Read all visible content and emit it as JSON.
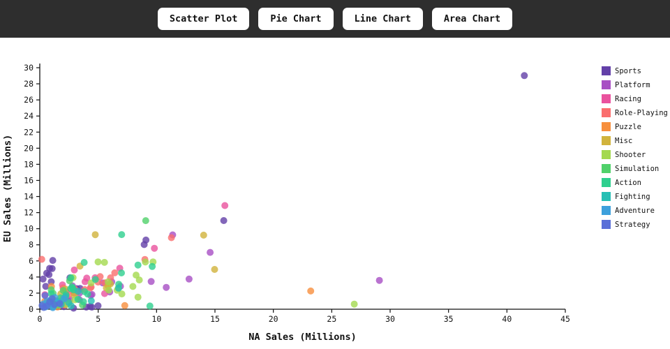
{
  "toolbar": {
    "buttons": [
      {
        "label": "Scatter Plot"
      },
      {
        "label": "Pie Chart"
      },
      {
        "label": "Line Chart"
      },
      {
        "label": "Area Chart"
      }
    ]
  },
  "colors": {
    "topbar_bg": "#2e2e2e",
    "button_bg": "#ffffff",
    "axis": "#111111"
  },
  "chart_data": {
    "type": "scatter",
    "title": "",
    "xlabel": "NA Sales (Millions)",
    "ylabel": "EU Sales (Millions)",
    "xlim": [
      0,
      45
    ],
    "ylim": [
      0,
      30
    ],
    "xticks": [
      0,
      5,
      10,
      15,
      20,
      25,
      30,
      35,
      40,
      45
    ],
    "yticks": [
      0,
      2,
      4,
      6,
      8,
      10,
      12,
      14,
      16,
      18,
      20,
      22,
      24,
      26,
      28,
      30
    ],
    "grid": false,
    "legend_position": "right",
    "marker": {
      "radius": 5,
      "opacity": 0.8
    },
    "series": [
      {
        "name": "Sports",
        "color": "#6340a8",
        "points": [
          [
            41.49,
            29.02
          ],
          [
            15.75,
            11.01
          ],
          [
            9.09,
            8.59
          ],
          [
            8.94,
            8.03
          ],
          [
            2.58,
            3.9
          ],
          [
            1.11,
            6.06
          ],
          [
            0.79,
            4.29
          ],
          [
            1.06,
            5.05
          ],
          [
            0.84,
            5.07
          ],
          [
            0.59,
            4.47
          ],
          [
            0.28,
            3.75
          ],
          [
            4.46,
            0.26
          ],
          [
            4.99,
            0.43
          ],
          [
            4.31,
            0.34
          ],
          [
            3.98,
            0.26
          ],
          [
            2.89,
            0.13
          ],
          [
            3.45,
            2.58
          ],
          [
            3.17,
            2.56
          ],
          [
            1.26,
            0.58
          ],
          [
            2.42,
            1.04
          ],
          [
            0.98,
            3.42
          ],
          [
            1.76,
            0.72
          ],
          [
            2.06,
            0.31
          ],
          [
            0.51,
            2.84
          ]
        ]
      },
      {
        "name": "Platform",
        "color": "#a84fc4",
        "points": [
          [
            29.08,
            3.58
          ],
          [
            14.59,
            7.06
          ],
          [
            11.38,
            9.23
          ],
          [
            12.78,
            3.75
          ],
          [
            10.83,
            2.71
          ],
          [
            9.54,
            3.44
          ],
          [
            6.91,
            2.85
          ],
          [
            6.16,
            3.4
          ],
          [
            5.99,
            2.15
          ],
          [
            5.39,
            3.26
          ],
          [
            4.36,
            1.71
          ],
          [
            4.47,
            1.83
          ],
          [
            3.4,
            2.0
          ],
          [
            2.8,
            2.9
          ],
          [
            3.4,
            1.18
          ],
          [
            2.55,
            1.18
          ],
          [
            1.95,
            1.26
          ],
          [
            2.01,
            0.52
          ],
          [
            1.15,
            0.7
          ]
        ]
      },
      {
        "name": "Racing",
        "color": "#ea529e",
        "points": [
          [
            15.85,
            12.88
          ],
          [
            9.81,
            7.57
          ],
          [
            6.85,
            5.09
          ],
          [
            5.55,
            1.94
          ],
          [
            4.74,
            3.91
          ],
          [
            4.02,
            3.87
          ],
          [
            3.88,
            3.42
          ],
          [
            2.96,
            4.88
          ],
          [
            3.13,
            2.1
          ],
          [
            2.98,
            2.02
          ],
          [
            2.26,
            2.17
          ],
          [
            1.94,
            3.03
          ],
          [
            1.57,
            1.02
          ],
          [
            0.44,
            1.8
          ],
          [
            1.18,
            0.53
          ],
          [
            2.06,
            1.04
          ]
        ]
      },
      {
        "name": "Role-Playing",
        "color": "#fa6e6e",
        "points": [
          [
            11.27,
            8.89
          ],
          [
            9.0,
            6.18
          ],
          [
            6.42,
            4.52
          ],
          [
            6.06,
            3.9
          ],
          [
            5.57,
            3.28
          ],
          [
            5.17,
            4.05
          ],
          [
            4.99,
            3.37
          ],
          [
            4.4,
            2.77
          ],
          [
            4.34,
            2.65
          ],
          [
            3.86,
            2.44
          ],
          [
            3.01,
            2.47
          ],
          [
            2.91,
            2.07
          ],
          [
            2.28,
            1.72
          ],
          [
            2.55,
            1.89
          ],
          [
            1.99,
            2.65
          ],
          [
            0.17,
            6.2
          ]
        ]
      },
      {
        "name": "Puzzle",
        "color": "#f78f3d",
        "points": [
          [
            23.2,
            2.26
          ],
          [
            7.28,
            0.45
          ],
          [
            1.0,
            2.83
          ],
          [
            2.18,
            0.52
          ],
          [
            1.18,
            1.2
          ],
          [
            0.76,
            0.65
          ],
          [
            1.52,
            0.28
          ],
          [
            0.42,
            0.97
          ]
        ]
      },
      {
        "name": "Misc",
        "color": "#d1b33c",
        "points": [
          [
            14.03,
            9.2
          ],
          [
            14.97,
            4.94
          ],
          [
            4.75,
            9.26
          ],
          [
            3.44,
            5.36
          ],
          [
            6.05,
            3.15
          ],
          [
            5.84,
            2.93
          ],
          [
            5.7,
            2.64
          ],
          [
            2.2,
            2.5
          ],
          [
            1.79,
            1.9
          ],
          [
            2.96,
            1.77
          ],
          [
            1.49,
            1.04
          ],
          [
            0.94,
            0.53
          ],
          [
            2.54,
            0.81
          ]
        ]
      },
      {
        "name": "Shooter",
        "color": "#a4d94f",
        "points": [
          [
            26.93,
            0.63
          ],
          [
            9.04,
            5.86
          ],
          [
            9.7,
            5.88
          ],
          [
            8.52,
            3.63
          ],
          [
            8.25,
            4.24
          ],
          [
            4.99,
            5.88
          ],
          [
            5.54,
            5.82
          ],
          [
            5.91,
            2.38
          ],
          [
            7.97,
            2.83
          ],
          [
            7.03,
            1.9
          ],
          [
            6.63,
            2.36
          ],
          [
            8.41,
            1.5
          ],
          [
            5.85,
            3.41
          ],
          [
            6.72,
            2.63
          ],
          [
            4.4,
            3.26
          ],
          [
            2.85,
            3.92
          ],
          [
            3.01,
            1.17
          ],
          [
            2.31,
            0.6
          ],
          [
            1.71,
            1.06
          ]
        ]
      },
      {
        "name": "Simulation",
        "color": "#50d16a",
        "points": [
          [
            9.07,
            11.0
          ],
          [
            2.55,
            3.52
          ],
          [
            2.01,
            2.32
          ],
          [
            0.98,
            2.4
          ],
          [
            1.89,
            1.0
          ],
          [
            1.15,
            1.96
          ],
          [
            0.66,
            0.77
          ],
          [
            1.58,
            0.51
          ],
          [
            3.66,
            0.52
          ]
        ]
      },
      {
        "name": "Action",
        "color": "#2ecf8e",
        "points": [
          [
            7.01,
            9.27
          ],
          [
            9.63,
            5.31
          ],
          [
            9.43,
            0.4
          ],
          [
            8.41,
            5.49
          ],
          [
            6.99,
            4.51
          ],
          [
            6.76,
            3.1
          ],
          [
            4.76,
            3.69
          ],
          [
            3.8,
            5.81
          ],
          [
            2.66,
            3.9
          ],
          [
            4.1,
            1.89
          ],
          [
            3.83,
            2.19
          ],
          [
            3.74,
            0.93
          ],
          [
            2.8,
            2.62
          ],
          [
            2.77,
            2.76
          ],
          [
            2.64,
            2.56
          ],
          [
            2.9,
            2.4
          ],
          [
            1.38,
            1.0
          ],
          [
            2.24,
            1.81
          ],
          [
            1.79,
            1.42
          ],
          [
            0.6,
            0.36
          ],
          [
            1.13,
            0.78
          ],
          [
            3.27,
            1.22
          ],
          [
            0.98,
            1.94
          ]
        ]
      },
      {
        "name": "Fighting",
        "color": "#26bfb4",
        "points": [
          [
            6.75,
            2.61
          ],
          [
            4.41,
            1.04
          ],
          [
            3.27,
            2.23
          ],
          [
            2.69,
            0.42
          ],
          [
            2.47,
            0.83
          ],
          [
            2.22,
            1.58
          ],
          [
            1.84,
            0.6
          ],
          [
            1.16,
            0.33
          ],
          [
            0.9,
            1.12
          ],
          [
            1.57,
            0.91
          ]
        ]
      },
      {
        "name": "Adventure",
        "color": "#3da0dc",
        "points": [
          [
            2.08,
            1.29
          ],
          [
            1.3,
            1.45
          ],
          [
            0.95,
            0.57
          ],
          [
            1.66,
            0.76
          ],
          [
            0.62,
            1.02
          ],
          [
            0.48,
            0.29
          ],
          [
            1.12,
            0.2
          ],
          [
            0.3,
            0.65
          ]
        ]
      },
      {
        "name": "Strategy",
        "color": "#5a6fd8",
        "points": [
          [
            1.26,
            0.56
          ],
          [
            0.85,
            0.92
          ],
          [
            0.63,
            0.41
          ],
          [
            1.71,
            0.69
          ],
          [
            0.34,
            0.21
          ],
          [
            1.05,
            1.32
          ],
          [
            0.45,
            1.7
          ],
          [
            0.2,
            0.45
          ]
        ]
      }
    ]
  }
}
